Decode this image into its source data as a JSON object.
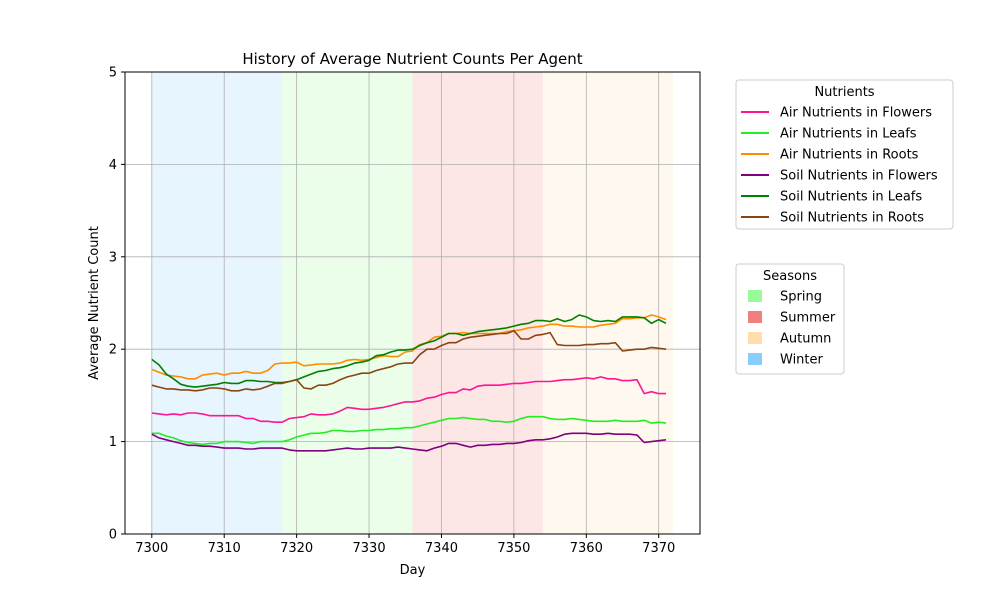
{
  "chart_data": {
    "type": "line",
    "title": "History of Average Nutrient Counts Per Agent",
    "xlabel": "Day",
    "ylabel": "Average Nutrient Count",
    "xlim": [
      7296.3,
      7375.7
    ],
    "ylim": [
      0,
      5
    ],
    "xticks": [
      7300,
      7310,
      7320,
      7330,
      7340,
      7350,
      7360,
      7370
    ],
    "yticks": [
      0,
      1,
      2,
      3,
      4,
      5
    ],
    "grid": true,
    "x": [
      7300,
      7301,
      7302,
      7303,
      7304,
      7305,
      7306,
      7307,
      7308,
      7309,
      7310,
      7311,
      7312,
      7313,
      7314,
      7315,
      7316,
      7317,
      7318,
      7319,
      7320,
      7321,
      7322,
      7323,
      7324,
      7325,
      7326,
      7327,
      7328,
      7329,
      7330,
      7331,
      7332,
      7333,
      7334,
      7335,
      7336,
      7337,
      7338,
      7339,
      7340,
      7341,
      7342,
      7343,
      7344,
      7345,
      7346,
      7347,
      7348,
      7349,
      7350,
      7351,
      7352,
      7353,
      7354,
      7355,
      7356,
      7357,
      7358,
      7359,
      7360,
      7361,
      7362,
      7363,
      7364,
      7365,
      7366,
      7367,
      7368,
      7369,
      7370,
      7371
    ],
    "series": [
      {
        "name": "Air Nutrients in Flowers",
        "color": "#ff1493",
        "values": [
          1.31,
          1.3,
          1.29,
          1.3,
          1.29,
          1.31,
          1.31,
          1.3,
          1.28,
          1.28,
          1.28,
          1.28,
          1.28,
          1.25,
          1.25,
          1.22,
          1.22,
          1.21,
          1.21,
          1.25,
          1.26,
          1.27,
          1.3,
          1.29,
          1.29,
          1.3,
          1.33,
          1.37,
          1.36,
          1.35,
          1.35,
          1.36,
          1.37,
          1.39,
          1.41,
          1.43,
          1.43,
          1.44,
          1.47,
          1.48,
          1.51,
          1.53,
          1.53,
          1.57,
          1.56,
          1.6,
          1.61,
          1.61,
          1.61,
          1.62,
          1.63,
          1.63,
          1.64,
          1.65,
          1.65,
          1.65,
          1.66,
          1.67,
          1.67,
          1.68,
          1.69,
          1.68,
          1.7,
          1.68,
          1.68,
          1.66,
          1.66,
          1.67,
          1.52,
          1.54,
          1.52,
          1.52
        ]
      },
      {
        "name": "Air Nutrients in Leafs",
        "color": "#22ee22",
        "values": [
          1.09,
          1.09,
          1.06,
          1.04,
          1.01,
          0.99,
          0.98,
          0.97,
          0.98,
          0.98,
          1.0,
          1.0,
          1.0,
          0.99,
          0.98,
          1.0,
          1.0,
          1.0,
          1.0,
          1.02,
          1.05,
          1.07,
          1.09,
          1.09,
          1.1,
          1.12,
          1.12,
          1.11,
          1.11,
          1.12,
          1.12,
          1.13,
          1.13,
          1.14,
          1.14,
          1.15,
          1.15,
          1.17,
          1.19,
          1.21,
          1.23,
          1.25,
          1.25,
          1.26,
          1.25,
          1.24,
          1.24,
          1.22,
          1.22,
          1.21,
          1.22,
          1.25,
          1.27,
          1.27,
          1.27,
          1.25,
          1.24,
          1.24,
          1.25,
          1.24,
          1.23,
          1.22,
          1.22,
          1.22,
          1.23,
          1.22,
          1.22,
          1.22,
          1.23,
          1.2,
          1.21,
          1.2
        ]
      },
      {
        "name": "Air Nutrients in Roots",
        "color": "#ff8c00",
        "values": [
          1.78,
          1.75,
          1.72,
          1.71,
          1.7,
          1.68,
          1.68,
          1.72,
          1.73,
          1.74,
          1.72,
          1.74,
          1.74,
          1.76,
          1.74,
          1.74,
          1.77,
          1.84,
          1.85,
          1.85,
          1.86,
          1.82,
          1.83,
          1.84,
          1.84,
          1.84,
          1.85,
          1.88,
          1.89,
          1.88,
          1.89,
          1.91,
          1.93,
          1.92,
          1.92,
          1.97,
          1.98,
          2.05,
          2.07,
          2.13,
          2.14,
          2.17,
          2.17,
          2.18,
          2.17,
          2.17,
          2.17,
          2.17,
          2.17,
          2.19,
          2.2,
          2.21,
          2.23,
          2.24,
          2.25,
          2.27,
          2.27,
          2.25,
          2.25,
          2.24,
          2.24,
          2.24,
          2.26,
          2.27,
          2.28,
          2.33,
          2.33,
          2.34,
          2.34,
          2.37,
          2.35,
          2.32
        ]
      },
      {
        "name": "Soil Nutrients in Flowers",
        "color": "#800080",
        "values": [
          1.08,
          1.04,
          1.02,
          1.0,
          0.98,
          0.96,
          0.96,
          0.95,
          0.95,
          0.94,
          0.93,
          0.93,
          0.93,
          0.92,
          0.92,
          0.93,
          0.93,
          0.93,
          0.93,
          0.91,
          0.9,
          0.9,
          0.9,
          0.9,
          0.9,
          0.91,
          0.92,
          0.93,
          0.92,
          0.92,
          0.93,
          0.93,
          0.93,
          0.93,
          0.94,
          0.93,
          0.92,
          0.91,
          0.9,
          0.93,
          0.95,
          0.98,
          0.98,
          0.96,
          0.94,
          0.96,
          0.96,
          0.97,
          0.97,
          0.98,
          0.98,
          0.99,
          1.01,
          1.02,
          1.02,
          1.03,
          1.05,
          1.08,
          1.09,
          1.09,
          1.09,
          1.08,
          1.08,
          1.09,
          1.08,
          1.08,
          1.08,
          1.07,
          0.99,
          1.0,
          1.01,
          1.02
        ]
      },
      {
        "name": "Soil Nutrients in Leafs",
        "color": "#008000",
        "values": [
          1.89,
          1.83,
          1.73,
          1.68,
          1.62,
          1.6,
          1.59,
          1.6,
          1.61,
          1.62,
          1.64,
          1.63,
          1.63,
          1.66,
          1.66,
          1.65,
          1.65,
          1.64,
          1.64,
          1.65,
          1.67,
          1.7,
          1.73,
          1.76,
          1.77,
          1.79,
          1.8,
          1.82,
          1.85,
          1.86,
          1.88,
          1.93,
          1.94,
          1.97,
          1.99,
          1.99,
          2.0,
          2.04,
          2.07,
          2.09,
          2.13,
          2.17,
          2.17,
          2.15,
          2.17,
          2.19,
          2.2,
          2.21,
          2.22,
          2.23,
          2.25,
          2.27,
          2.28,
          2.31,
          2.31,
          2.3,
          2.33,
          2.3,
          2.32,
          2.37,
          2.35,
          2.31,
          2.3,
          2.31,
          2.3,
          2.35,
          2.35,
          2.35,
          2.34,
          2.28,
          2.32,
          2.28
        ]
      },
      {
        "name": "Soil Nutrients in Roots",
        "color": "#8b4513",
        "values": [
          1.61,
          1.59,
          1.57,
          1.57,
          1.56,
          1.56,
          1.55,
          1.56,
          1.58,
          1.58,
          1.57,
          1.55,
          1.55,
          1.57,
          1.56,
          1.57,
          1.6,
          1.63,
          1.63,
          1.65,
          1.67,
          1.58,
          1.57,
          1.61,
          1.61,
          1.63,
          1.67,
          1.7,
          1.72,
          1.74,
          1.74,
          1.77,
          1.79,
          1.81,
          1.84,
          1.85,
          1.85,
          1.94,
          2.0,
          2.0,
          2.04,
          2.07,
          2.07,
          2.11,
          2.13,
          2.14,
          2.15,
          2.16,
          2.17,
          2.17,
          2.2,
          2.11,
          2.11,
          2.15,
          2.16,
          2.18,
          2.05,
          2.04,
          2.04,
          2.04,
          2.05,
          2.05,
          2.06,
          2.06,
          2.07,
          1.98,
          1.99,
          2.0,
          2.0,
          2.02,
          2.01,
          2.0
        ]
      }
    ],
    "seasons": [
      {
        "name": "Winter",
        "start": 7300,
        "end": 7318,
        "color": "#87cefa"
      },
      {
        "name": "Spring",
        "start": 7318,
        "end": 7336,
        "color": "#98fb98"
      },
      {
        "name": "Summer",
        "start": 7336,
        "end": 7354,
        "color": "#f08080"
      },
      {
        "name": "Autumn",
        "start": 7354,
        "end": 7372,
        "color": "#ffdead"
      }
    ],
    "legend_nutrients": {
      "title": "Nutrients",
      "placement": "outside-right-top"
    },
    "legend_seasons": {
      "title": "Seasons",
      "placement": "outside-right-middle",
      "entries": [
        {
          "label": "Spring",
          "color": "#98fb98"
        },
        {
          "label": "Summer",
          "color": "#f08080"
        },
        {
          "label": "Autumn",
          "color": "#ffdead"
        },
        {
          "label": "Winter",
          "color": "#87cefa"
        }
      ]
    }
  }
}
